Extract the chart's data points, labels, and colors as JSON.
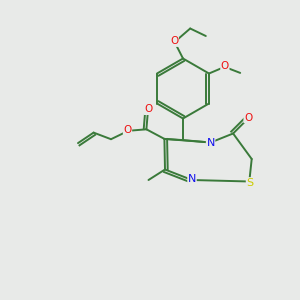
{
  "background_color": "#e8eae8",
  "bond_color": "#3a7a3a",
  "atom_colors": {
    "O": "#ee1111",
    "N": "#1111ee",
    "S": "#cccc00",
    "C": "#3a7a3a"
  },
  "figsize": [
    3.0,
    3.0
  ],
  "dpi": 100,
  "lw": 1.4
}
